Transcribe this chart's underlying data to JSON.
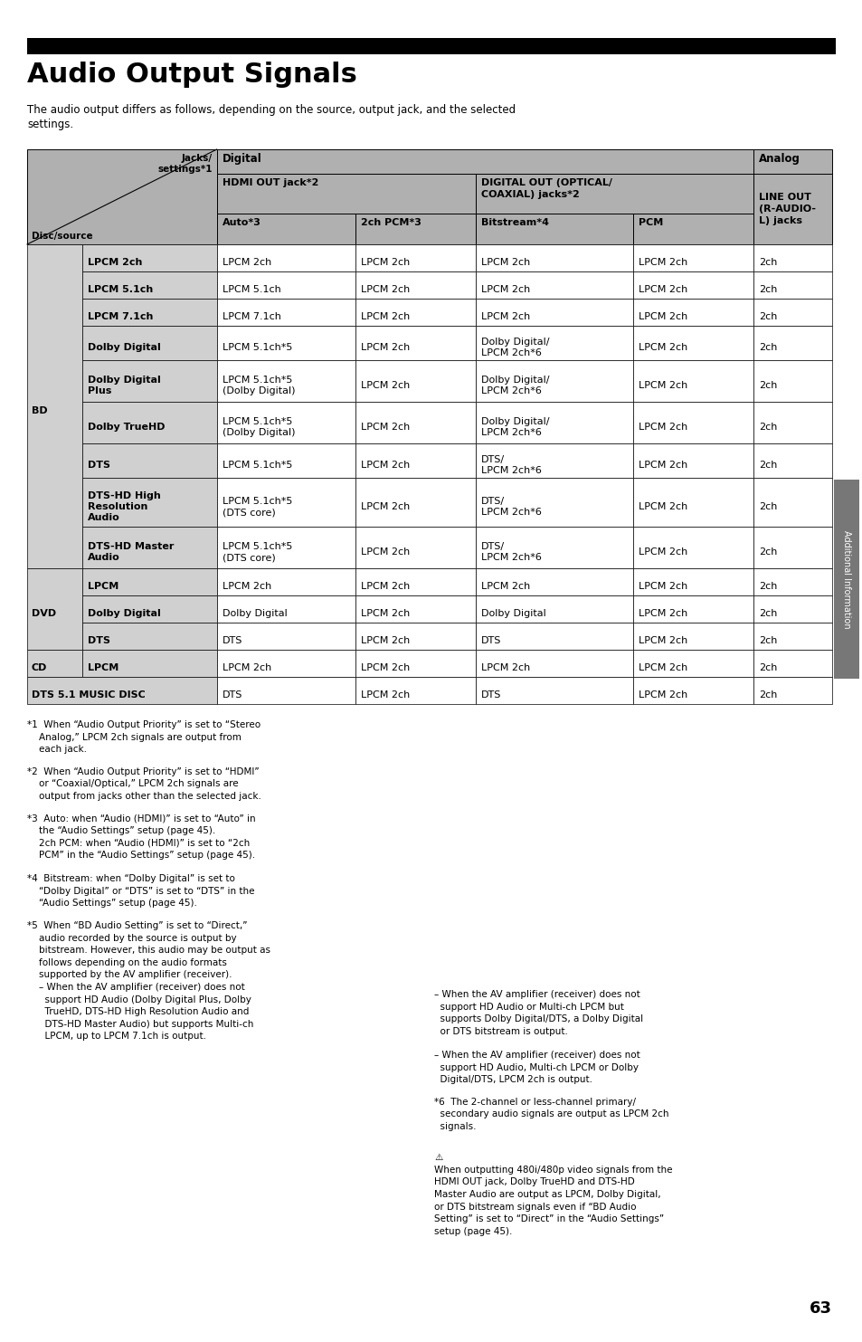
{
  "title": "Audio Output Signals",
  "subtitle": "The audio output differs as follows, depending on the source, output jack, and the selected\nsettings.",
  "page_num": "63",
  "side_label": "Additional Information",
  "bg_color": "#ffffff",
  "header_bg": "#b0b0b0",
  "cell_bg_gray": "#d0d0d0",
  "cell_bg_white": "#ffffff",
  "border_color": "#000000",
  "text_color": "#000000",
  "rows": [
    [
      "BD",
      "LPCM 2ch",
      "LPCM 2ch",
      "LPCM 2ch",
      "LPCM 2ch",
      "LPCM 2ch",
      "2ch"
    ],
    [
      "",
      "LPCM 5.1ch",
      "LPCM 5.1ch",
      "LPCM 2ch",
      "LPCM 2ch",
      "LPCM 2ch",
      "2ch"
    ],
    [
      "",
      "LPCM 7.1ch",
      "LPCM 7.1ch",
      "LPCM 2ch",
      "LPCM 2ch",
      "LPCM 2ch",
      "2ch"
    ],
    [
      "",
      "Dolby Digital",
      "LPCM 5.1ch*5",
      "LPCM 2ch",
      "Dolby Digital/\nLPCM 2ch*6",
      "LPCM 2ch",
      "2ch"
    ],
    [
      "",
      "Dolby Digital\nPlus",
      "LPCM 5.1ch*5\n(Dolby Digital)",
      "LPCM 2ch",
      "Dolby Digital/\nLPCM 2ch*6",
      "LPCM 2ch",
      "2ch"
    ],
    [
      "",
      "Dolby TrueHD",
      "LPCM 5.1ch*5\n(Dolby Digital)",
      "LPCM 2ch",
      "Dolby Digital/\nLPCM 2ch*6",
      "LPCM 2ch",
      "2ch"
    ],
    [
      "",
      "DTS",
      "LPCM 5.1ch*5",
      "LPCM 2ch",
      "DTS/\nLPCM 2ch*6",
      "LPCM 2ch",
      "2ch"
    ],
    [
      "",
      "DTS-HD High\nResolution\nAudio",
      "LPCM 5.1ch*5\n(DTS core)",
      "LPCM 2ch",
      "DTS/\nLPCM 2ch*6",
      "LPCM 2ch",
      "2ch"
    ],
    [
      "",
      "DTS-HD Master\nAudio",
      "LPCM 5.1ch*5\n(DTS core)",
      "LPCM 2ch",
      "DTS/\nLPCM 2ch*6",
      "LPCM 2ch",
      "2ch"
    ],
    [
      "DVD",
      "LPCM",
      "LPCM 2ch",
      "LPCM 2ch",
      "LPCM 2ch",
      "LPCM 2ch",
      "2ch"
    ],
    [
      "",
      "Dolby Digital",
      "Dolby Digital",
      "LPCM 2ch",
      "Dolby Digital",
      "LPCM 2ch",
      "2ch"
    ],
    [
      "",
      "DTS",
      "DTS",
      "LPCM 2ch",
      "DTS",
      "LPCM 2ch",
      "2ch"
    ],
    [
      "CD",
      "LPCM",
      "LPCM 2ch",
      "LPCM 2ch",
      "LPCM 2ch",
      "LPCM 2ch",
      "2ch"
    ],
    [
      "DTS 5.1 MUSIC DISC",
      "",
      "DTS",
      "LPCM 2ch",
      "DTS",
      "LPCM 2ch",
      "2ch"
    ]
  ],
  "footnote_left_1": "*1  When “Audio Output Priority” is set to “Stereo\n    Analog,” LPCM 2ch signals are output from\n    each jack.",
  "footnote_left_2": "*2  When “Audio Output Priority” is set to “HDMI”\n    or “Coaxial/Optical,” LPCM 2ch signals are\n    output from jacks other than the selected jack.",
  "footnote_left_3": "*3  Auto: when “Audio (HDMI)” is set to “Auto” in\n    the “Audio Settings” setup (page 45).\n    2ch PCM: when “Audio (HDMI)” is set to “2ch\n    PCM” in the “Audio Settings” setup (page 45).",
  "footnote_left_4": "*4  Bitstream: when “Dolby Digital” is set to\n    “Dolby Digital” or “DTS” is set to “DTS” in the\n    “Audio Settings” setup (page 45).",
  "footnote_left_5": "*5  When “BD Audio Setting” is set to “Direct,”\n    audio recorded by the source is output by\n    bitstream. However, this audio may be output as\n    follows depending on the audio formats\n    supported by the AV amplifier (receiver).\n    – When the AV amplifier (receiver) does not\n      support HD Audio (Dolby Digital Plus, Dolby\n      TrueHD, DTS-HD High Resolution Audio and\n      DTS-HD Master Audio) but supports Multi-ch\n      LPCM, up to LPCM 7.1ch is output.",
  "footnote_right_1": "– When the AV amplifier (receiver) does not\n  support HD Audio or Multi-ch LPCM but\n  supports Dolby Digital/DTS, a Dolby Digital\n  or DTS bitstream is output.",
  "footnote_right_2": "– When the AV amplifier (receiver) does not\n  support HD Audio, Multi-ch LPCM or Dolby\n  Digital/DTS, LPCM 2ch is output.",
  "footnote_right_6": "*6  The 2-channel or less-channel primary/\n  secondary audio signals are output as LPCM 2ch\n  signals.",
  "footnote_right_warn": "⚠\nWhen outputting 480i/480p video signals from the\nHDMI OUT jack, Dolby TrueHD and DTS-HD\nMaster Audio are output as LPCM, Dolby Digital,\nor DTS bitstream signals even if “BD Audio\nSetting” is set to “Direct” in the “Audio Settings”\nsetup (page 45)."
}
